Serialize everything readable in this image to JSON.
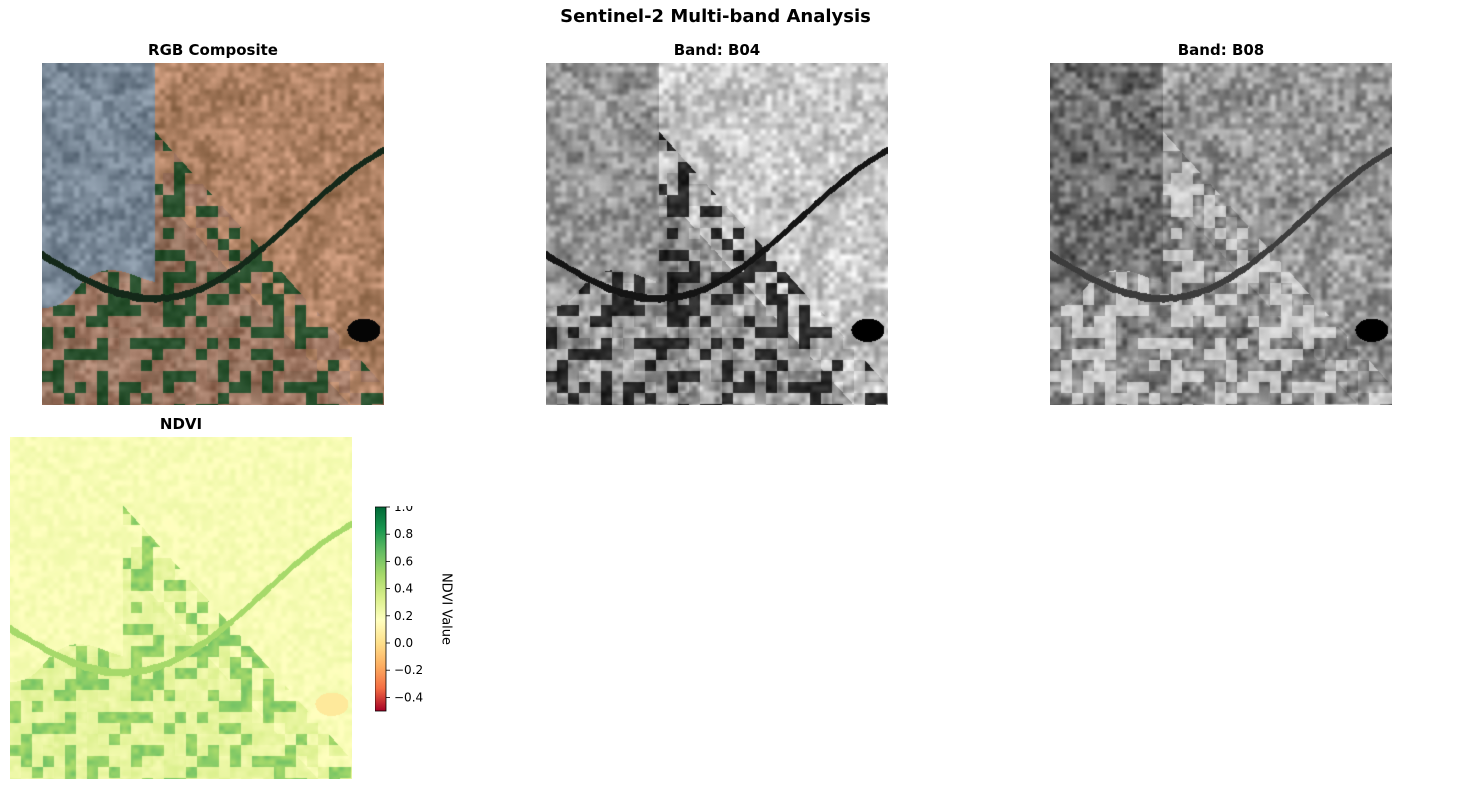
{
  "figure": {
    "title": "Sentinel-2 Multi-band Analysis"
  },
  "panels": [
    {
      "title": "RGB Composite",
      "kind": "rgb-image"
    },
    {
      "title": "Band: B04",
      "kind": "grayscale-image"
    },
    {
      "title": "Band: B08",
      "kind": "grayscale-image"
    },
    {
      "title": "NDVI",
      "kind": "ndvi-heatmap"
    }
  ],
  "chart_data": {
    "type": "heatmap",
    "title": "NDVI",
    "colormap": "RdYlGn",
    "colorbar": {
      "label": "NDVI Value",
      "range": [
        -0.5,
        1.0
      ],
      "ticks": [
        1.0,
        0.8,
        0.6,
        0.4,
        0.2,
        0.0,
        -0.2,
        -0.4
      ],
      "tick_labels": [
        "1.0",
        "0.8",
        "0.6",
        "0.4",
        "0.2",
        "0.0",
        "−0.2",
        "−0.4"
      ],
      "colors": [
        "#a50026",
        "#f46d43",
        "#fdae61",
        "#fee08b",
        "#ffffbf",
        "#d9ef8b",
        "#a6d96a",
        "#66bd63",
        "#1a9850",
        "#006837"
      ]
    },
    "grid": false,
    "axes_visible": false
  }
}
